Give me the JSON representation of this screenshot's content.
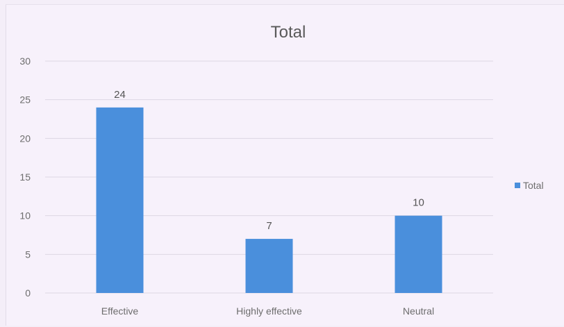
{
  "colors": {
    "bar": "#4a8fdc",
    "background": "#f7f1fb",
    "grid": "#ddd6e3",
    "text": "#6d6d6d"
  },
  "chart_data": {
    "type": "bar",
    "title": "Total",
    "categories": [
      "Effective",
      "Highly effective",
      "Neutral"
    ],
    "series": [
      {
        "name": "Total",
        "values": [
          24,
          7,
          10
        ]
      }
    ],
    "data_labels": [
      "24",
      "7",
      "10"
    ],
    "ylim": [
      0,
      30
    ],
    "yticks": [
      "0",
      "5",
      "10",
      "15",
      "20",
      "25",
      "30"
    ],
    "xlabel": "",
    "ylabel": "",
    "grid": true,
    "legend": "right"
  }
}
